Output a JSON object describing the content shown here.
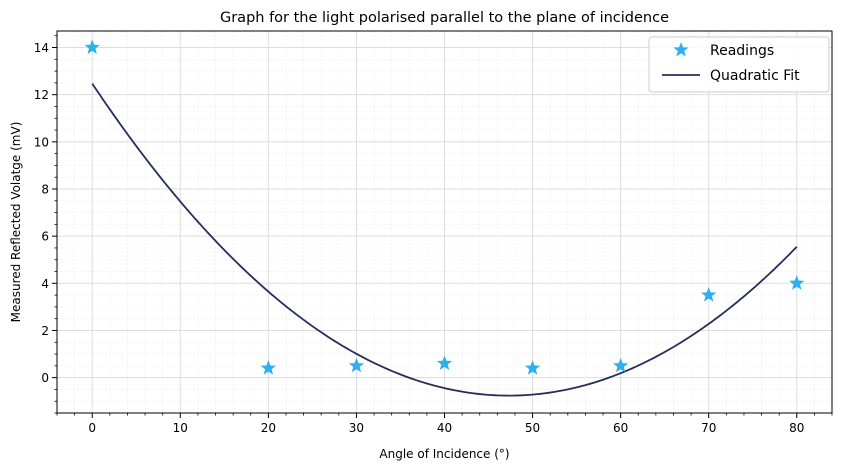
{
  "chart_data": {
    "type": "scatter",
    "title": "Graph for the light polarised parallel to the plane of incidence",
    "xlabel": "Angle of Incidence (°)",
    "ylabel": "Measured Reflected Volatge (mV)",
    "xlim": [
      -4,
      84
    ],
    "ylim": [
      -1.5,
      14.7
    ],
    "xticks": [
      0,
      10,
      20,
      30,
      40,
      50,
      60,
      70,
      80
    ],
    "yticks": [
      0,
      2,
      4,
      6,
      8,
      10,
      12,
      14
    ],
    "grid": true,
    "legend_position": "top-right",
    "series": [
      {
        "name": "Readings",
        "kind": "scatter",
        "marker": "star",
        "color": "#2cb0ef",
        "x": [
          0,
          20,
          30,
          40,
          50,
          60,
          70,
          80
        ],
        "y": [
          14.0,
          0.4,
          0.5,
          0.6,
          0.4,
          0.5,
          3.5,
          4.0
        ]
      },
      {
        "name": "Quadratic Fit",
        "kind": "line",
        "color": "#252f58",
        "coefficients": [
          0.00591,
          -0.5593,
          12.47
        ],
        "x_range": [
          0,
          80
        ]
      }
    ]
  }
}
